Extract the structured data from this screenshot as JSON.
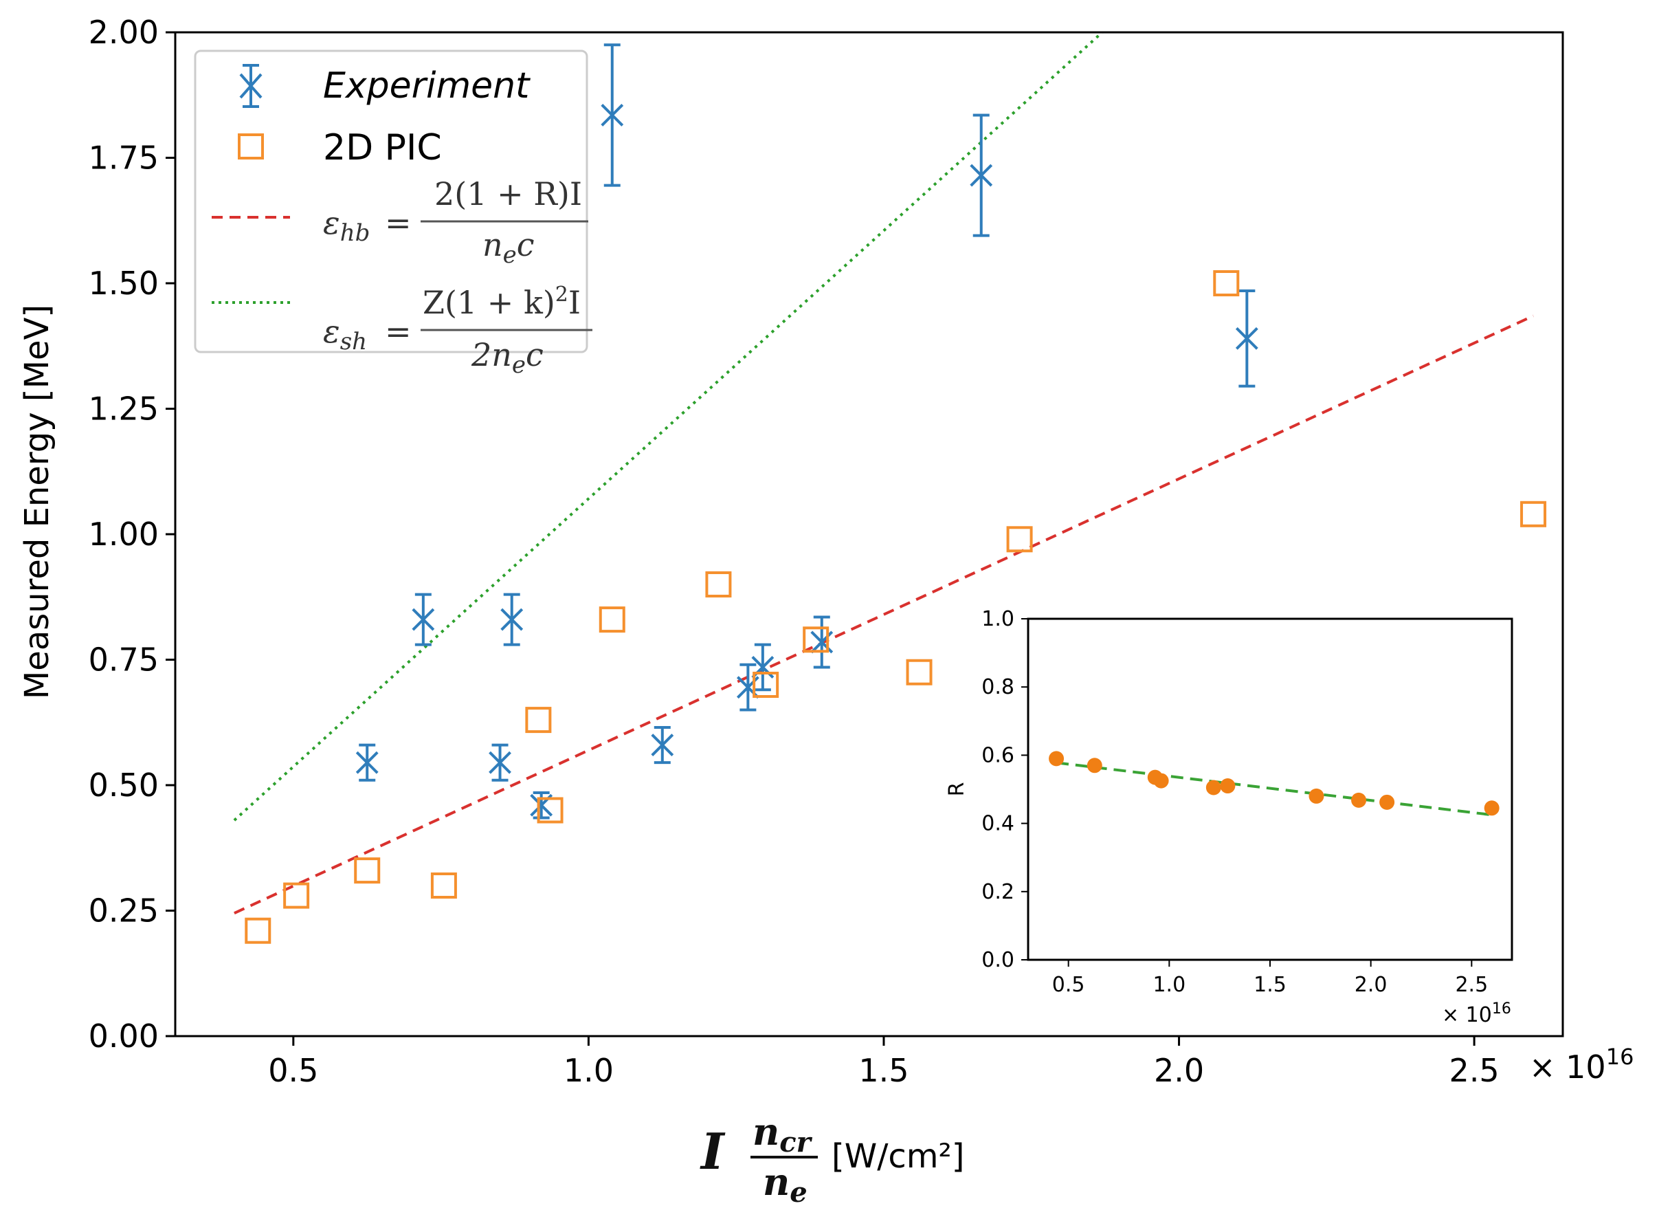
{
  "chart_data": [
    {
      "type": "scatter",
      "title": "",
      "ylabel": "Measured Energy [MeV]",
      "xlabel_symbol": "I",
      "xlabel_numerator": "n",
      "xlabel_numerator_sub": "cr",
      "xlabel_denominator": "n",
      "xlabel_denominator_sub": "e",
      "xlabel_unit": "[W/cm²]",
      "x_multiplier": "× 10",
      "x_multiplier_exp": "16",
      "xlim": [
        0.3,
        2.65
      ],
      "ylim": [
        0.0,
        2.0
      ],
      "xticks": [
        0.5,
        1.0,
        1.5,
        2.0,
        2.5
      ],
      "xtick_labels": [
        "0.5",
        "1.0",
        "1.5",
        "2.0",
        "2.5"
      ],
      "yticks": [
        0.0,
        0.25,
        0.5,
        0.75,
        1.0,
        1.25,
        1.5,
        1.75,
        2.0
      ],
      "ytick_labels": [
        "0.00",
        "0.25",
        "0.50",
        "0.75",
        "1.00",
        "1.25",
        "1.50",
        "1.75",
        "2.00"
      ],
      "series": [
        {
          "name": "Experiment",
          "marker": "x",
          "color": "#2f7dbb",
          "points": [
            {
              "x": 0.625,
              "y": 0.545,
              "err": 0.035
            },
            {
              "x": 0.72,
              "y": 0.83,
              "err": 0.05
            },
            {
              "x": 0.85,
              "y": 0.545,
              "err": 0.035
            },
            {
              "x": 0.87,
              "y": 0.83,
              "err": 0.05
            },
            {
              "x": 0.92,
              "y": 0.46,
              "err": 0.025
            },
            {
              "x": 1.04,
              "y": 1.835,
              "err": 0.14
            },
            {
              "x": 1.125,
              "y": 0.58,
              "err": 0.035
            },
            {
              "x": 1.27,
              "y": 0.695,
              "err": 0.045
            },
            {
              "x": 1.295,
              "y": 0.735,
              "err": 0.045
            },
            {
              "x": 1.395,
              "y": 0.785,
              "err": 0.05
            },
            {
              "x": 1.665,
              "y": 1.715,
              "err": 0.12
            },
            {
              "x": 2.115,
              "y": 1.39,
              "err": 0.095
            }
          ]
        },
        {
          "name": "2D PIC",
          "marker": "square",
          "color": "#f5902e",
          "points": [
            {
              "x": 0.44,
              "y": 0.21
            },
            {
              "x": 0.505,
              "y": 0.28
            },
            {
              "x": 0.625,
              "y": 0.33
            },
            {
              "x": 0.755,
              "y": 0.3
            },
            {
              "x": 0.915,
              "y": 0.63
            },
            {
              "x": 0.935,
              "y": 0.45
            },
            {
              "x": 1.04,
              "y": 0.83
            },
            {
              "x": 1.22,
              "y": 0.9
            },
            {
              "x": 1.3,
              "y": 0.7
            },
            {
              "x": 1.385,
              "y": 0.79
            },
            {
              "x": 1.56,
              "y": 0.725
            },
            {
              "x": 1.73,
              "y": 0.99
            },
            {
              "x": 2.08,
              "y": 1.5
            },
            {
              "x": 2.6,
              "y": 1.04
            }
          ]
        },
        {
          "name": "ε_hb",
          "marker": "dashed-line",
          "color": "#d9312e",
          "points": [
            {
              "x": 0.4,
              "y": 0.245
            },
            {
              "x": 2.6,
              "y": 1.435
            }
          ]
        },
        {
          "name": "ε_sh",
          "marker": "dotted-line",
          "color": "#2ca02c",
          "points": [
            {
              "x": 0.4,
              "y": 0.43
            },
            {
              "x": 1.87,
              "y": 2.0
            }
          ]
        }
      ],
      "legend": {
        "position": "top-left",
        "entries": [
          {
            "label": "Experiment"
          },
          {
            "label": "2D PIC"
          },
          {
            "lhs": "ε",
            "lhs_sub": "hb",
            "eq": "=",
            "num": "2(1 + R)I",
            "den": "n",
            "den_sub": "e",
            "den_tail": "c"
          },
          {
            "lhs": "ε",
            "lhs_sub": "sh",
            "eq": "=",
            "num": "Z(1 + k)",
            "num_sup": "2",
            "num_tail": "I",
            "den": "2n",
            "den_sub": "e",
            "den_tail": "c"
          }
        ]
      }
    },
    {
      "type": "scatter",
      "title": "",
      "position": "inset bottom-right",
      "ylabel": "R",
      "xlabel": "",
      "x_multiplier": "× 10",
      "x_multiplier_exp": "16",
      "xlim": [
        0.3,
        2.7
      ],
      "ylim": [
        0.0,
        1.0
      ],
      "xticks": [
        0.5,
        1.0,
        1.5,
        2.0,
        2.5
      ],
      "xtick_labels": [
        "0.5",
        "1.0",
        "1.5",
        "2.0",
        "2.5"
      ],
      "yticks": [
        0.0,
        0.2,
        0.4,
        0.6,
        0.8,
        1.0
      ],
      "ytick_labels": [
        "0.0",
        "0.2",
        "0.4",
        "0.6",
        "0.8",
        "1.0"
      ],
      "series": [
        {
          "name": "R",
          "marker": "circle",
          "color": "#f07f14",
          "points": [
            {
              "x": 0.44,
              "y": 0.59
            },
            {
              "x": 0.63,
              "y": 0.57
            },
            {
              "x": 0.93,
              "y": 0.535
            },
            {
              "x": 0.96,
              "y": 0.525
            },
            {
              "x": 1.22,
              "y": 0.505
            },
            {
              "x": 1.29,
              "y": 0.51
            },
            {
              "x": 1.73,
              "y": 0.48
            },
            {
              "x": 1.94,
              "y": 0.468
            },
            {
              "x": 2.08,
              "y": 0.462
            },
            {
              "x": 2.6,
              "y": 0.445
            }
          ]
        },
        {
          "name": "fit",
          "marker": "dashed-line",
          "color": "#3aa335",
          "points": [
            {
              "x": 0.44,
              "y": 0.578
            },
            {
              "x": 2.6,
              "y": 0.425
            }
          ]
        }
      ]
    }
  ]
}
